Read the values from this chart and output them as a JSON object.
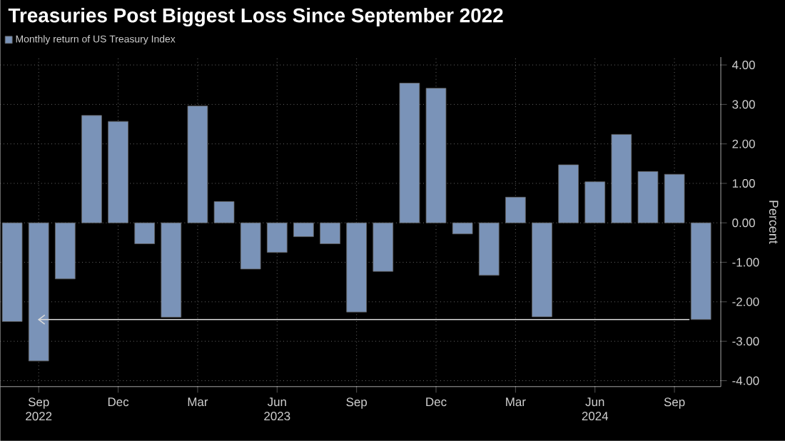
{
  "chart_data": {
    "type": "bar",
    "title": "Treasuries Post Biggest Loss Since September 2022",
    "categories": [
      null,
      "Sep 2022",
      null,
      null,
      "Dec",
      null,
      null,
      "Mar",
      null,
      null,
      "Jun 2023",
      null,
      null,
      "Sep",
      null,
      null,
      "Dec",
      null,
      null,
      "Mar",
      null,
      null,
      "Jun 2024",
      null,
      null,
      "Sep",
      null
    ],
    "series": [
      {
        "name": "Monthly return of US Treasury Index",
        "color": "#7a93b8",
        "values": [
          -2.5,
          -3.5,
          -1.42,
          2.72,
          2.57,
          -0.53,
          -2.39,
          2.96,
          0.54,
          -1.17,
          -0.75,
          -0.35,
          -0.53,
          -2.26,
          -1.23,
          3.54,
          3.41,
          -0.28,
          -1.33,
          0.65,
          -2.38,
          1.47,
          1.04,
          2.24,
          1.3,
          1.23,
          -2.45
        ]
      }
    ],
    "ylabel": "Percent",
    "ylim": [
      -4.15,
      4.2
    ],
    "yticks": [
      {
        "value": -4,
        "label": "-4.00"
      },
      {
        "value": -3,
        "label": "-3.00"
      },
      {
        "value": -2,
        "label": "-2.00"
      },
      {
        "value": -1,
        "label": "-1.00"
      },
      {
        "value": 0,
        "label": "0.00"
      },
      {
        "value": 1,
        "label": "1.00"
      },
      {
        "value": 2,
        "label": "2.00"
      },
      {
        "value": 3,
        "label": "3.00"
      },
      {
        "value": 4,
        "label": "4.00"
      }
    ],
    "ref_lines": [
      {
        "axis": "y",
        "value": -2.45,
        "color": "#d9d9d9"
      }
    ],
    "grid": true,
    "legend": "top left"
  }
}
